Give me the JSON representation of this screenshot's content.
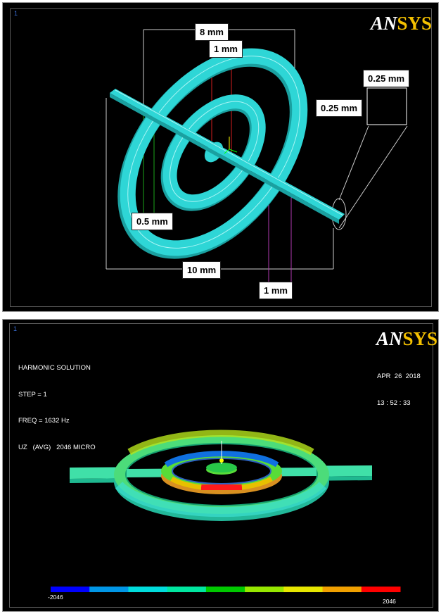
{
  "top_panel": {
    "logo": {
      "part_a": "AN",
      "part_b": "SYS"
    },
    "window_number": "1",
    "labels": {
      "outer_diameter": "8 mm",
      "ring_width": "1 mm",
      "beam_width": "0.25 mm",
      "beam_height": "0.25 mm",
      "gap": "0.5 mm",
      "overall_length": "10 mm",
      "ring_spacing": "1 mm"
    }
  },
  "bottom_panel": {
    "logo": {
      "part_a": "AN",
      "part_b": "SYS"
    },
    "window_number": "1",
    "info": {
      "line1": "HARMONIC SOLUTION",
      "line2": "STEP = 1",
      "line3": "FREQ = 1632 Hz",
      "line4": "UZ   (AVG)   2046 MICRO"
    },
    "date": "APR  26  2018",
    "time": "13 : 52 : 33",
    "legend": {
      "min_label": "-2046",
      "max_label": "2046",
      "colors": [
        "#0000ff",
        "#0096e6",
        "#00dcdc",
        "#00e6a0",
        "#00c800",
        "#96e600",
        "#e6e600",
        "#f0a000",
        "#ff0000"
      ]
    }
  }
}
